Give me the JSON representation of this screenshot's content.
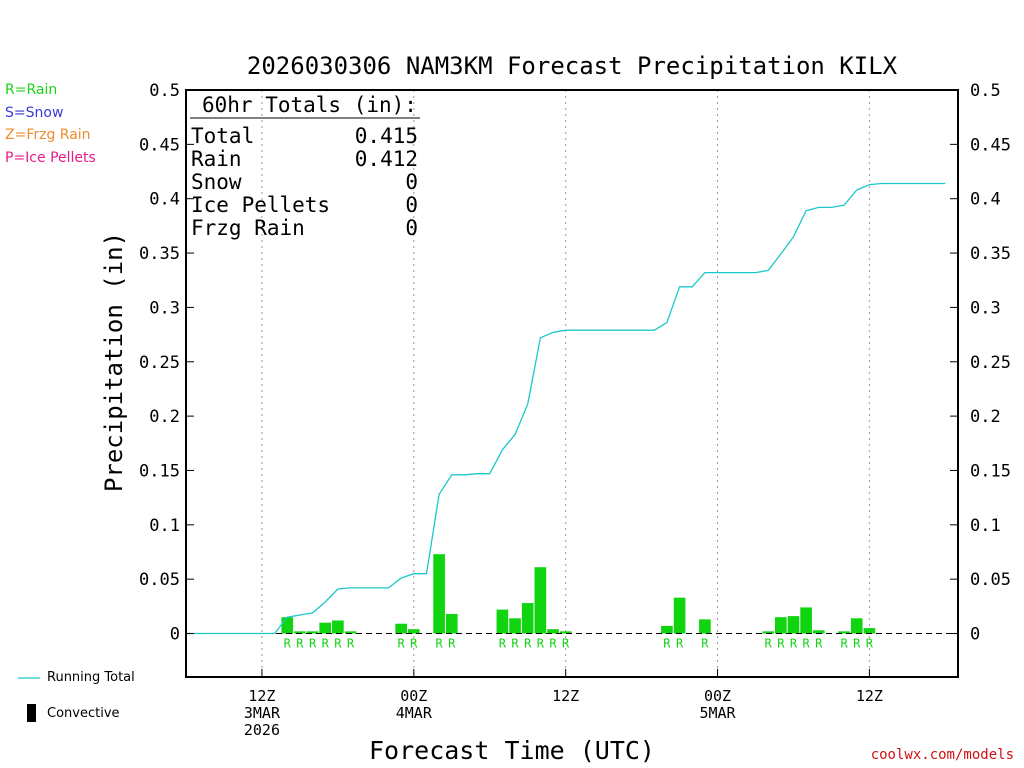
{
  "chart_data": {
    "type": "bar",
    "title": "2026030306 NAM3KM Forecast Precipitation KILX",
    "xlabel": "Forecast Time (UTC)",
    "ylabel": "Precipitation (in)",
    "ylim": [
      -0.04,
      0.5
    ],
    "yticks": [
      0,
      0.05,
      0.1,
      0.15,
      0.2,
      0.25,
      0.3,
      0.35,
      0.4,
      0.45,
      0.5
    ],
    "ytick_labels": [
      "0",
      "0.05",
      "0.1",
      "0.15",
      "0.2",
      "0.25",
      "0.3",
      "0.35",
      "0.4",
      "0.45",
      "0.5"
    ],
    "xlim_hours": [
      0,
      61
    ],
    "xticks": [
      {
        "hour": 6,
        "lines": [
          "12Z",
          "3MAR",
          "2026"
        ]
      },
      {
        "hour": 18,
        "lines": [
          "00Z",
          "4MAR"
        ]
      },
      {
        "hour": 30,
        "lines": [
          "12Z"
        ]
      },
      {
        "hour": 42,
        "lines": [
          "00Z",
          "5MAR"
        ]
      },
      {
        "hour": 54,
        "lines": [
          "12Z"
        ]
      }
    ],
    "totals": {
      "header": "60hr Totals (in):",
      "rows": [
        {
          "label": "Total",
          "value": "0.415"
        },
        {
          "label": "Rain",
          "value": "0.412"
        },
        {
          "label": "Snow",
          "value": "0"
        },
        {
          "label": "Ice Pellets",
          "value": "0"
        },
        {
          "label": "Frzg Rain",
          "value": "0"
        }
      ]
    },
    "hourly_precip": [
      {
        "hour": 8,
        "value": 0.015,
        "ptype": "R"
      },
      {
        "hour": 9,
        "value": 0.002,
        "ptype": "R"
      },
      {
        "hour": 10,
        "value": 0.002,
        "ptype": "R"
      },
      {
        "hour": 11,
        "value": 0.01,
        "ptype": "R"
      },
      {
        "hour": 12,
        "value": 0.012,
        "ptype": "R"
      },
      {
        "hour": 13,
        "value": 0.002,
        "ptype": "R"
      },
      {
        "hour": 17,
        "value": 0.009,
        "ptype": "R"
      },
      {
        "hour": 18,
        "value": 0.004,
        "ptype": "R"
      },
      {
        "hour": 20,
        "value": 0.073,
        "ptype": "R"
      },
      {
        "hour": 21,
        "value": 0.018,
        "ptype": "R"
      },
      {
        "hour": 25,
        "value": 0.022,
        "ptype": "R"
      },
      {
        "hour": 26,
        "value": 0.014,
        "ptype": "R"
      },
      {
        "hour": 27,
        "value": 0.028,
        "ptype": "R"
      },
      {
        "hour": 28,
        "value": 0.061,
        "ptype": "R"
      },
      {
        "hour": 29,
        "value": 0.004,
        "ptype": "R"
      },
      {
        "hour": 30,
        "value": 0.002,
        "ptype": "R"
      },
      {
        "hour": 38,
        "value": 0.007,
        "ptype": "R"
      },
      {
        "hour": 39,
        "value": 0.033,
        "ptype": "R"
      },
      {
        "hour": 41,
        "value": 0.013,
        "ptype": "R"
      },
      {
        "hour": 46,
        "value": 0.002,
        "ptype": "R"
      },
      {
        "hour": 47,
        "value": 0.015,
        "ptype": "R"
      },
      {
        "hour": 48,
        "value": 0.016,
        "ptype": "R"
      },
      {
        "hour": 49,
        "value": 0.024,
        "ptype": "R"
      },
      {
        "hour": 50,
        "value": 0.003,
        "ptype": "R"
      },
      {
        "hour": 52,
        "value": 0.002,
        "ptype": "R"
      },
      {
        "hour": 53,
        "value": 0.014,
        "ptype": "R"
      },
      {
        "hour": 54,
        "value": 0.005,
        "ptype": "R"
      }
    ],
    "running_total": {
      "hours": [
        0,
        1,
        2,
        3,
        4,
        5,
        6,
        7,
        8,
        9,
        10,
        11,
        12,
        13,
        14,
        15,
        16,
        17,
        18,
        19,
        20,
        21,
        22,
        23,
        24,
        25,
        26,
        27,
        28,
        29,
        30,
        31,
        32,
        33,
        34,
        35,
        36,
        37,
        38,
        39,
        40,
        41,
        42,
        43,
        44,
        45,
        46,
        47,
        48,
        49,
        50,
        51,
        52,
        53,
        54,
        55,
        56,
        57,
        58,
        59,
        60
      ],
      "values": [
        0,
        0,
        0,
        0,
        0,
        0,
        0,
        0,
        0.015,
        0.017,
        0.019,
        0.029,
        0.041,
        0.042,
        0.042,
        0.042,
        0.042,
        0.051,
        0.055,
        0.055,
        0.128,
        0.146,
        0.146,
        0.147,
        0.147,
        0.169,
        0.183,
        0.211,
        0.272,
        0.277,
        0.279,
        0.279,
        0.279,
        0.279,
        0.279,
        0.279,
        0.279,
        0.279,
        0.286,
        0.319,
        0.319,
        0.332,
        0.332,
        0.332,
        0.332,
        0.332,
        0.334,
        0.349,
        0.365,
        0.389,
        0.392,
        0.392,
        0.394,
        0.408,
        0.413,
        0.414,
        0.414,
        0.414,
        0.414,
        0.414,
        0.414
      ]
    },
    "ptype_legend": [
      {
        "text": "R=Rain",
        "color": "#19d419"
      },
      {
        "text": "S=Snow",
        "color": "#3a3ad8"
      },
      {
        "text": "Z=Frzg Rain",
        "color": "#f08a2a"
      },
      {
        "text": "P=Ice Pellets",
        "color": "#e81a8c"
      }
    ],
    "series_legend": {
      "running_total": "Running Total",
      "convective": "Convective"
    },
    "colors": {
      "rain": "#11d411",
      "running_total": "#1cc8cc",
      "axis": "#000000"
    }
  },
  "credit": "coolwx.com/models"
}
